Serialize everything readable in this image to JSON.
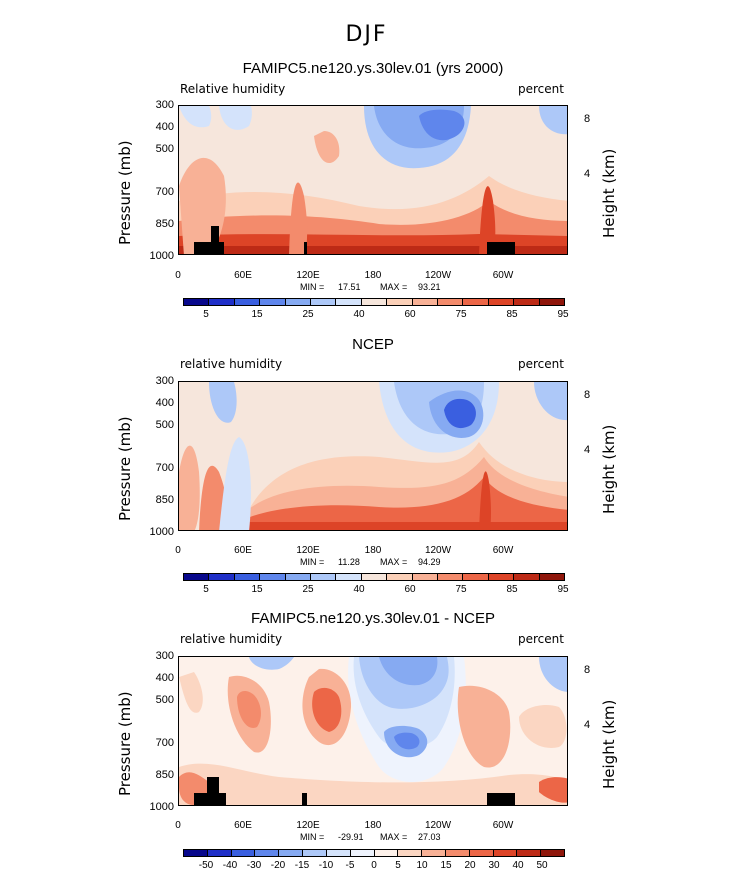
{
  "figure": {
    "title": "DJF"
  },
  "chart_data": [
    {
      "type": "heatmap",
      "title": "FAMIPC5.ne120.ys.30lev.01 (yrs 2000)",
      "left_label": "Relative humidity",
      "right_label": "percent",
      "ylabel": "Pressure (mb)",
      "ylabel2": "Height (km)",
      "y_ticks": [
        "300",
        "400",
        "500",
        "700",
        "850",
        "1000"
      ],
      "y2_ticks": [
        "8",
        "4"
      ],
      "x_ticks": [
        "0",
        "60E",
        "120E",
        "180",
        "120W",
        "60W"
      ],
      "ylim": [
        1000,
        300
      ],
      "min_label": "MIN =",
      "min_value": "17.51",
      "max_label": "MAX =",
      "max_value": "93.21",
      "colorbar_ticks": [
        "5",
        "15",
        "25",
        "40",
        "60",
        "75",
        "85",
        "95"
      ]
    },
    {
      "type": "heatmap",
      "title": "NCEP",
      "left_label": "relative humidity",
      "right_label": "percent",
      "ylabel": "Pressure (mb)",
      "ylabel2": "Height (km)",
      "y_ticks": [
        "300",
        "400",
        "500",
        "700",
        "850",
        "1000"
      ],
      "y2_ticks": [
        "8",
        "4"
      ],
      "x_ticks": [
        "0",
        "60E",
        "120E",
        "180",
        "120W",
        "60W"
      ],
      "ylim": [
        1000,
        300
      ],
      "min_label": "MIN =",
      "min_value": "11.28",
      "max_label": "MAX =",
      "max_value": "94.29",
      "colorbar_ticks": [
        "5",
        "15",
        "25",
        "40",
        "60",
        "75",
        "85",
        "95"
      ]
    },
    {
      "type": "heatmap",
      "title": "FAMIPC5.ne120.ys.30lev.01 - NCEP",
      "left_label": "relative humidity",
      "right_label": "percent",
      "ylabel": "Pressure (mb)",
      "ylabel2": "Height (km)",
      "y_ticks": [
        "300",
        "400",
        "500",
        "700",
        "850",
        "1000"
      ],
      "y2_ticks": [
        "8",
        "4"
      ],
      "x_ticks": [
        "0",
        "60E",
        "120E",
        "180",
        "120W",
        "60W"
      ],
      "ylim": [
        1000,
        300
      ],
      "min_label": "MIN =",
      "min_value": "-29.91",
      "max_label": "MAX =",
      "max_value": "27.03",
      "colorbar_ticks": [
        "-50",
        "-40",
        "-30",
        "-20",
        "-15",
        "-10",
        "-5",
        "0",
        "5",
        "10",
        "15",
        "20",
        "30",
        "40",
        "50"
      ]
    }
  ],
  "colors": {
    "seq": [
      "#08088c",
      "#1f2fc8",
      "#3a5fe0",
      "#5f86ec",
      "#86aaf2",
      "#adc8f8",
      "#d4e3fb",
      "#f6e6dc",
      "#fbd0b8",
      "#f8b196",
      "#f38b6c",
      "#ec6647",
      "#dd4427",
      "#bd2a16",
      "#8f160b"
    ],
    "div": [
      "#08088c",
      "#1f2fc8",
      "#3a5fe0",
      "#5f86ec",
      "#86aaf2",
      "#adc8f8",
      "#d4e3fb",
      "#eef3fd",
      "#fdf1ea",
      "#fbd6c2",
      "#f8b196",
      "#f38b6c",
      "#ec6647",
      "#dd4427",
      "#bd2a16",
      "#8f160b"
    ],
    "topo": "#000000"
  }
}
